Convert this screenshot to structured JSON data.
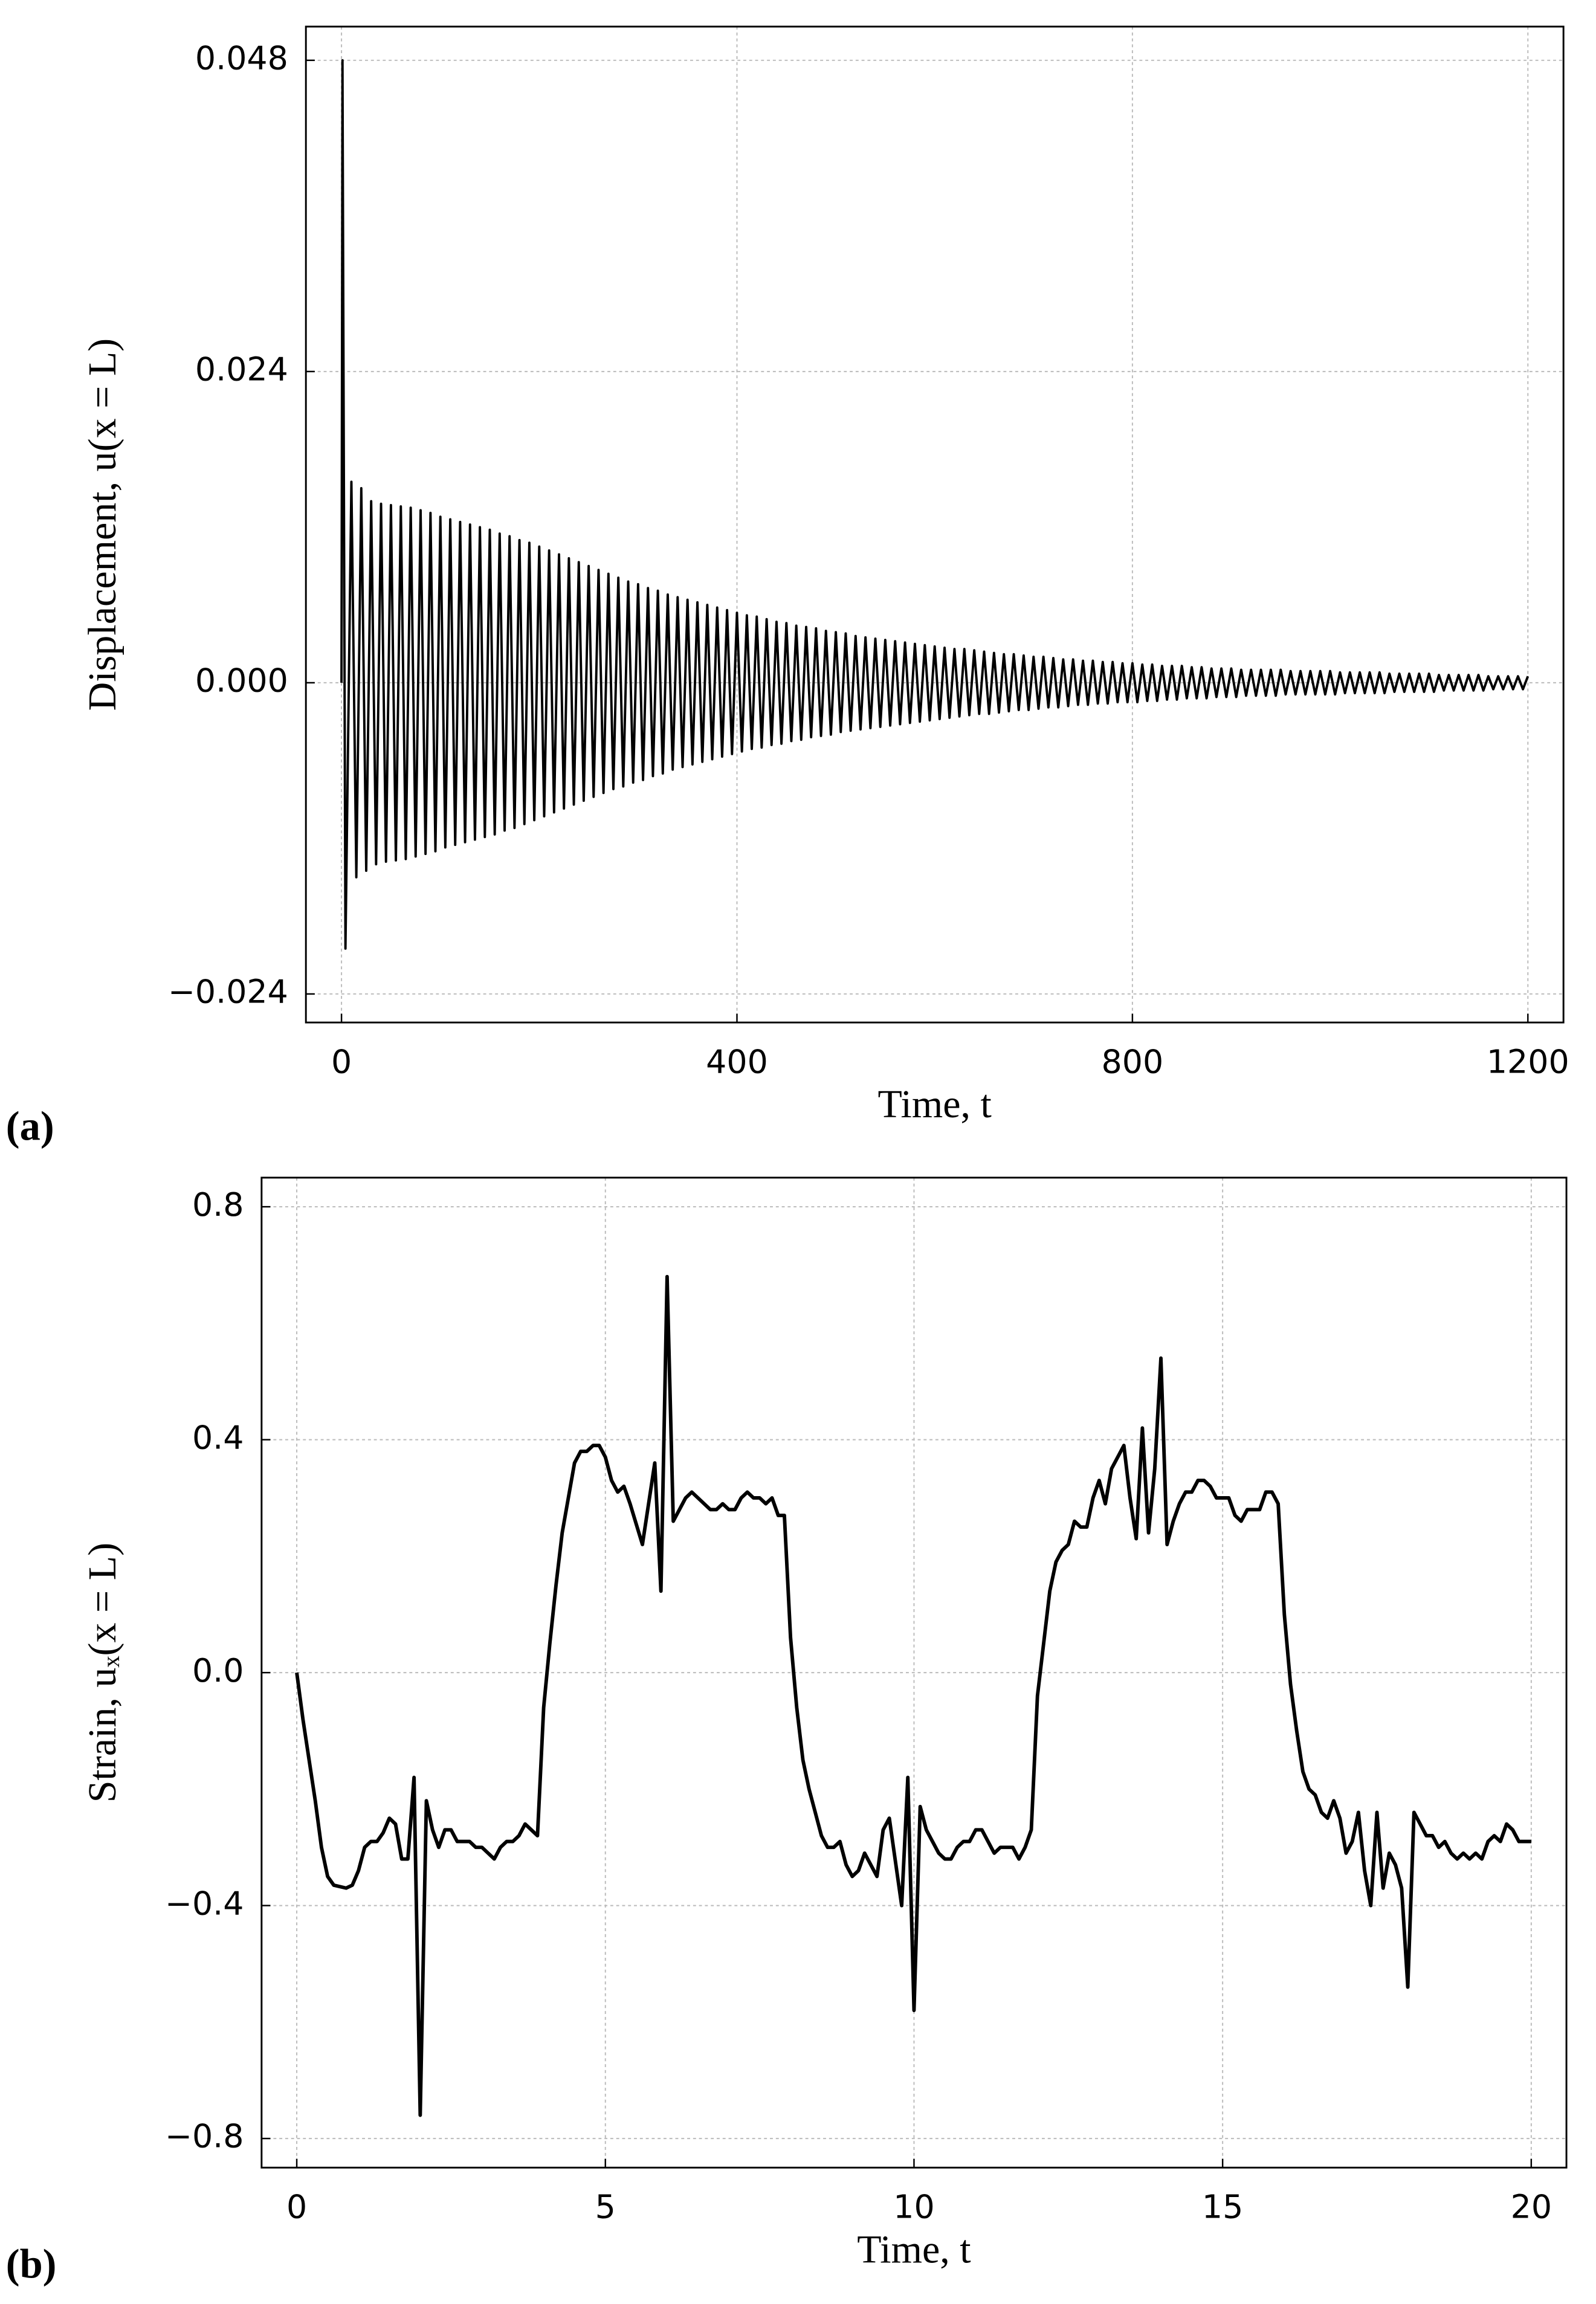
{
  "chart_data": [
    {
      "type": "line",
      "panel_label": "(a)",
      "x_label": "Time,  t",
      "y_label": "Displacement,  u(x = L)",
      "color": "#000000",
      "grid": true,
      "xlim": [
        -36,
        1236
      ],
      "ylim": [
        -0.0262,
        0.0506
      ],
      "xticks": [
        0,
        400,
        800,
        1200
      ],
      "yticks": [
        {
          "value": -0.024,
          "label": "−0.024"
        },
        {
          "value": 0,
          "label": "0.000"
        },
        0.024,
        0.048
      ],
      "x": [
        0,
        1,
        4,
        10,
        15,
        20,
        25,
        30,
        35,
        40,
        45,
        50,
        55,
        60,
        65,
        70,
        75,
        80,
        85,
        90,
        95,
        100,
        105,
        110,
        115,
        120,
        125,
        130,
        135,
        140,
        145,
        150,
        155,
        160,
        165,
        170,
        175,
        180,
        185,
        190,
        195,
        200,
        205,
        210,
        215,
        220,
        225,
        230,
        235,
        240,
        245,
        250,
        255,
        260,
        265,
        270,
        275,
        280,
        285,
        290,
        295,
        300,
        305,
        310,
        315,
        320,
        325,
        330,
        335,
        340,
        345,
        350,
        355,
        360,
        365,
        370,
        375,
        380,
        385,
        390,
        395,
        400,
        405,
        410,
        415,
        420,
        425,
        430,
        435,
        440,
        445,
        450,
        455,
        460,
        465,
        470,
        475,
        480,
        485,
        490,
        495,
        500,
        505,
        510,
        515,
        520,
        525,
        530,
        535,
        540,
        545,
        550,
        555,
        560,
        565,
        570,
        575,
        580,
        585,
        590,
        595,
        600,
        605,
        610,
        615,
        620,
        625,
        630,
        635,
        640,
        645,
        650,
        655,
        660,
        665,
        670,
        675,
        680,
        685,
        690,
        695,
        700,
        705,
        710,
        715,
        720,
        725,
        730,
        735,
        740,
        745,
        750,
        755,
        760,
        765,
        770,
        775,
        780,
        785,
        790,
        795,
        800,
        805,
        810,
        815,
        820,
        825,
        830,
        835,
        840,
        845,
        850,
        855,
        860,
        865,
        870,
        875,
        880,
        885,
        890,
        895,
        900,
        905,
        910,
        915,
        920,
        925,
        930,
        935,
        940,
        945,
        950,
        955,
        960,
        965,
        970,
        975,
        980,
        985,
        990,
        995,
        1000,
        1005,
        1010,
        1015,
        1020,
        1025,
        1030,
        1035,
        1040,
        1045,
        1050,
        1055,
        1060,
        1065,
        1070,
        1075,
        1080,
        1085,
        1090,
        1095,
        1100,
        1105,
        1110,
        1115,
        1120,
        1125,
        1130,
        1135,
        1140,
        1145,
        1150,
        1155,
        1160,
        1165,
        1170,
        1175,
        1180,
        1185,
        1190,
        1195,
        1200
      ],
      "values": [
        0,
        0.048,
        -0.0205,
        0.0155,
        -0.015,
        0.015,
        -0.0145,
        0.014,
        -0.014,
        0.0138,
        -0.0138,
        0.0137,
        -0.0137,
        0.0136,
        -0.0136,
        0.0135,
        -0.0134,
        0.0133,
        -0.0132,
        0.0131,
        -0.013,
        0.0128,
        -0.0127,
        0.0126,
        -0.0125,
        0.0124,
        -0.0123,
        0.0122,
        -0.0121,
        0.012,
        -0.0119,
        0.0118,
        -0.0117,
        0.0115,
        -0.0114,
        0.0113,
        -0.0112,
        0.011,
        -0.0109,
        0.0108,
        -0.0106,
        0.0105,
        -0.0103,
        0.0102,
        -0.01,
        0.0099,
        -0.0097,
        0.0096,
        -0.0094,
        0.0093,
        -0.0091,
        0.009,
        -0.0088,
        0.0087,
        -0.0085,
        0.0084,
        -0.0082,
        0.0081,
        -0.008,
        0.0078,
        -0.0077,
        0.0076,
        -0.0075,
        0.0073,
        -0.0072,
        0.0071,
        -0.007,
        0.0068,
        -0.0067,
        0.0066,
        -0.0065,
        0.0064,
        -0.0063,
        0.0062,
        -0.0061,
        0.006,
        -0.0059,
        0.0058,
        -0.0057,
        0.0056,
        -0.0055,
        0.0054,
        -0.0053,
        0.0052,
        -0.0051,
        0.0051,
        -0.005,
        0.0049,
        -0.0048,
        0.0047,
        -0.0047,
        0.0046,
        -0.0045,
        0.0044,
        -0.0044,
        0.0043,
        -0.0042,
        0.0042,
        -0.0041,
        0.004,
        -0.004,
        0.0039,
        -0.0038,
        0.0038,
        -0.0037,
        0.0036,
        -0.0036,
        0.0035,
        -0.0035,
        0.0034,
        -0.0034,
        0.0033,
        -0.0033,
        0.0032,
        -0.0032,
        0.0031,
        -0.0031,
        0.003,
        -0.003,
        0.0029,
        -0.0029,
        0.0028,
        -0.0028,
        0.0027,
        -0.0027,
        0.0026,
        -0.0026,
        0.0026,
        -0.0025,
        0.0025,
        -0.0024,
        0.0024,
        -0.0024,
        0.0023,
        -0.0023,
        0.0022,
        -0.0022,
        0.0022,
        -0.0021,
        0.0021,
        -0.0021,
        0.002,
        -0.002,
        0.002,
        -0.0019,
        0.0019,
        -0.0019,
        0.0018,
        -0.0018,
        0.0018,
        -0.0017,
        0.0017,
        -0.0017,
        0.0017,
        -0.0016,
        0.0016,
        -0.0016,
        0.0016,
        -0.0015,
        0.0015,
        -0.0015,
        0.0015,
        -0.0015,
        0.0014,
        -0.0014,
        0.0014,
        -0.0014,
        0.0013,
        -0.0013,
        0.0013,
        -0.0013,
        0.0013,
        -0.0012,
        0.0012,
        -0.0012,
        0.0012,
        -0.0012,
        0.0011,
        -0.0011,
        0.0011,
        -0.0011,
        0.0011,
        -0.0011,
        0.001,
        -0.001,
        0.001,
        -0.001,
        0.001,
        -0.001,
        0.001,
        -0.001,
        0.001,
        -0.0009,
        0.0009,
        -0.0009,
        0.0009,
        -0.0009,
        0.0009,
        -0.0009,
        0.0009,
        -0.0009,
        0.0009,
        -0.0009,
        0.0008,
        -0.0008,
        0.0008,
        -0.0008,
        0.0008,
        -0.0008,
        0.0008,
        -0.0008,
        0.0008,
        -0.0008,
        0.0007,
        -0.0007,
        0.0007,
        -0.0007,
        0.0007,
        -0.0007,
        0.0007,
        -0.0007,
        0.0007,
        -0.0007,
        0.0006,
        -0.0006,
        0.0006,
        -0.0006,
        0.0006,
        -0.0006,
        0.0006,
        -0.0006,
        0.0006,
        -0.0006,
        0.0005,
        -0.0005,
        0.0005,
        -0.0005,
        0.0005,
        -0.0005,
        0.0005,
        -0.0005,
        0.0005
      ]
    },
    {
      "type": "line",
      "panel_label": "(b)",
      "x_label": "Time,  t",
      "y_label": "Strain,  uₓ(x = L)",
      "color": "#000000",
      "grid": true,
      "xlim": [
        -0.57,
        20.57
      ],
      "ylim": [
        -0.85,
        0.85
      ],
      "xticks": [
        0,
        5,
        10,
        15,
        20
      ],
      "yticks": [
        {
          "value": -0.8,
          "label": "−0.8"
        },
        {
          "value": -0.4,
          "label": "−0.4"
        },
        {
          "value": 0,
          "label": "0.0"
        },
        0.4,
        0.8
      ],
      "x": [
        0,
        0.1,
        0.2,
        0.3,
        0.4,
        0.5,
        0.6,
        0.8,
        0.9,
        1,
        1.1,
        1.2,
        1.3,
        1.4,
        1.5,
        1.6,
        1.7,
        1.8,
        1.9,
        2,
        2.1,
        2.2,
        2.3,
        2.4,
        2.5,
        2.6,
        2.8,
        2.9,
        3,
        3.1,
        3.2,
        3.3,
        3.4,
        3.5,
        3.6,
        3.7,
        3.8,
        3.9,
        4,
        4.1,
        4.2,
        4.3,
        4.4,
        4.5,
        4.6,
        4.7,
        4.8,
        4.9,
        5,
        5.1,
        5.2,
        5.3,
        5.4,
        5.6,
        5.8,
        5.9,
        6,
        6.1,
        6.2,
        6.3,
        6.4,
        6.5,
        6.6,
        6.7,
        6.8,
        6.9,
        7,
        7.1,
        7.2,
        7.3,
        7.4,
        7.5,
        7.6,
        7.7,
        7.8,
        7.9,
        8,
        8.1,
        8.2,
        8.3,
        8.4,
        8.5,
        8.6,
        8.7,
        8.8,
        8.9,
        9,
        9.1,
        9.2,
        9.3,
        9.4,
        9.5,
        9.6,
        9.8,
        9.9,
        10,
        10.1,
        10.2,
        10.3,
        10.4,
        10.5,
        10.6,
        10.7,
        10.8,
        10.9,
        11,
        11.1,
        11.2,
        11.3,
        11.4,
        11.5,
        11.6,
        11.7,
        11.8,
        11.9,
        12,
        12.1,
        12.2,
        12.3,
        12.4,
        12.5,
        12.6,
        12.7,
        12.8,
        12.9,
        13,
        13.1,
        13.2,
        13.4,
        13.5,
        13.6,
        13.7,
        13.8,
        13.9,
        14,
        14.1,
        14.2,
        14.3,
        14.4,
        14.5,
        14.6,
        14.7,
        14.8,
        14.9,
        15,
        15.1,
        15.2,
        15.3,
        15.4,
        15.5,
        15.6,
        15.7,
        15.8,
        15.9,
        16,
        16.1,
        16.2,
        16.3,
        16.4,
        16.5,
        16.6,
        16.7,
        16.8,
        16.9,
        17,
        17.1,
        17.2,
        17.3,
        17.4,
        17.5,
        17.6,
        17.7,
        17.8,
        17.9,
        18,
        18.1,
        18.2,
        18.3,
        18.4,
        18.5,
        18.6,
        18.7,
        18.8,
        18.9,
        19,
        19.1,
        19.2,
        19.3,
        19.4,
        19.5,
        19.6,
        19.7,
        19.8,
        19.9,
        20
      ],
      "values": [
        0,
        -0.08,
        -0.15,
        -0.22,
        -0.3,
        -0.35,
        -0.365,
        -0.37,
        -0.365,
        -0.34,
        -0.3,
        -0.29,
        -0.29,
        -0.275,
        -0.25,
        -0.26,
        -0.32,
        -0.32,
        -0.18,
        -0.76,
        -0.22,
        -0.27,
        -0.3,
        -0.27,
        -0.27,
        -0.29,
        -0.29,
        -0.3,
        -0.3,
        -0.31,
        -0.32,
        -0.3,
        -0.29,
        -0.29,
        -0.28,
        -0.26,
        -0.27,
        -0.28,
        -0.06,
        0.05,
        0.15,
        0.24,
        0.3,
        0.36,
        0.38,
        0.38,
        0.39,
        0.39,
        0.37,
        0.33,
        0.31,
        0.32,
        0.29,
        0.22,
        0.36,
        0.14,
        0.68,
        0.26,
        0.28,
        0.3,
        0.31,
        0.3,
        0.29,
        0.28,
        0.28,
        0.29,
        0.28,
        0.28,
        0.3,
        0.31,
        0.3,
        0.3,
        0.29,
        0.3,
        0.27,
        0.27,
        0.06,
        -0.06,
        -0.15,
        -0.2,
        -0.24,
        -0.28,
        -0.3,
        -0.3,
        -0.29,
        -0.33,
        -0.35,
        -0.34,
        -0.31,
        -0.33,
        -0.35,
        -0.27,
        -0.25,
        -0.4,
        -0.18,
        -0.58,
        -0.23,
        -0.27,
        -0.29,
        -0.31,
        -0.32,
        -0.32,
        -0.3,
        -0.29,
        -0.29,
        -0.27,
        -0.27,
        -0.29,
        -0.31,
        -0.3,
        -0.3,
        -0.3,
        -0.32,
        -0.3,
        -0.27,
        -0.04,
        0.05,
        0.14,
        0.19,
        0.21,
        0.22,
        0.26,
        0.25,
        0.25,
        0.3,
        0.33,
        0.29,
        0.35,
        0.39,
        0.3,
        0.23,
        0.42,
        0.24,
        0.35,
        0.54,
        0.22,
        0.26,
        0.29,
        0.31,
        0.31,
        0.33,
        0.33,
        0.32,
        0.3,
        0.3,
        0.3,
        0.27,
        0.26,
        0.28,
        0.28,
        0.28,
        0.31,
        0.31,
        0.29,
        0.1,
        -0.02,
        -0.1,
        -0.17,
        -0.2,
        -0.21,
        -0.24,
        -0.25,
        -0.22,
        -0.25,
        -0.31,
        -0.29,
        -0.24,
        -0.34,
        -0.4,
        -0.24,
        -0.37,
        -0.31,
        -0.33,
        -0.37,
        -0.54,
        -0.24,
        -0.26,
        -0.28,
        -0.28,
        -0.3,
        -0.29,
        -0.31,
        -0.32,
        -0.31,
        -0.32,
        -0.31,
        -0.32,
        -0.29,
        -0.28,
        -0.29,
        -0.26,
        -0.27,
        -0.29,
        -0.29,
        -0.29
      ]
    }
  ]
}
